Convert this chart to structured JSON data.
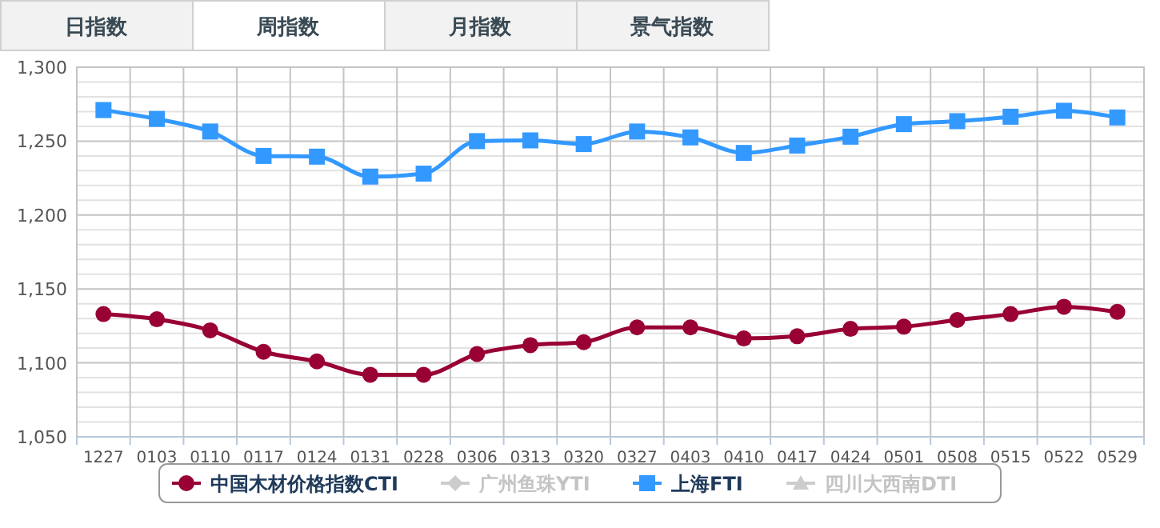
{
  "chart_data": {
    "type": "line",
    "annotations": [
      "日指数",
      "周指数",
      "月指数",
      "景气指数"
    ],
    "categories": [
      "1227",
      "0103",
      "0110",
      "0117",
      "0124",
      "0131",
      "0228",
      "0306",
      "0313",
      "0320",
      "0327",
      "0403",
      "0410",
      "0417",
      "0424",
      "0501",
      "0508",
      "0515",
      "0522",
      "0529"
    ],
    "series": [
      {
        "name": "中国木材价格指数CTI",
        "color": "#990033",
        "marker": "circle",
        "values": [
          1133,
          1129.5,
          1122,
          1107.5,
          1101,
          1092,
          1092,
          1106,
          1112,
          1114,
          1124,
          1124,
          1116.5,
          1118,
          1123,
          1124.5,
          1129,
          1133,
          1138,
          1134.5
        ]
      },
      {
        "name": "广州鱼珠YTI",
        "color": "#cccccc",
        "marker": "diamond",
        "values": [
          null,
          null,
          null,
          null,
          null,
          null,
          null,
          null,
          null,
          null,
          null,
          null,
          null,
          null,
          null,
          null,
          null,
          null,
          null,
          null
        ]
      },
      {
        "name": "上海FTI",
        "color": "#3399ff",
        "marker": "square",
        "values": [
          1271,
          1265,
          1256.5,
          1240,
          1239.5,
          1226,
          1228,
          1250,
          1250.5,
          1248,
          1256.5,
          1252.5,
          1242,
          1247,
          1253,
          1261.5,
          1263.5,
          1266.5,
          1270.5,
          1266
        ]
      },
      {
        "name": "四川大西南DTI",
        "color": "#cccccc",
        "marker": "triangle",
        "values": [
          null,
          null,
          null,
          null,
          null,
          null,
          null,
          null,
          null,
          null,
          null,
          null,
          null,
          null,
          null,
          null,
          null,
          null,
          null,
          null
        ]
      }
    ],
    "ylim": [
      1050,
      1300
    ],
    "yticks": [
      {
        "value": 1050,
        "label": "1,050"
      },
      {
        "value": 1060,
        "label": null
      },
      {
        "value": 1070,
        "label": null
      },
      {
        "value": 1080,
        "label": null
      },
      {
        "value": 1090,
        "label": null
      },
      {
        "value": 1100,
        "label": "1,100"
      },
      {
        "value": 1110,
        "label": null
      },
      {
        "value": 1120,
        "label": null
      },
      {
        "value": 1130,
        "label": null
      },
      {
        "value": 1140,
        "label": null
      },
      {
        "value": 1150,
        "label": "1,150"
      },
      {
        "value": 1160,
        "label": null
      },
      {
        "value": 1170,
        "label": null
      },
      {
        "value": 1180,
        "label": null
      },
      {
        "value": 1190,
        "label": null
      },
      {
        "value": 1200,
        "label": "1,200"
      },
      {
        "value": 1210,
        "label": null
      },
      {
        "value": 1220,
        "label": null
      },
      {
        "value": 1230,
        "label": null
      },
      {
        "value": 1240,
        "label": null
      },
      {
        "value": 1250,
        "label": "1,250"
      },
      {
        "value": 1260,
        "label": null
      },
      {
        "value": 1270,
        "label": null
      },
      {
        "value": 1280,
        "label": null
      },
      {
        "value": 1290,
        "label": null
      },
      {
        "value": 1300,
        "label": "1,300"
      }
    ],
    "grid": true,
    "legend": "bottom"
  }
}
